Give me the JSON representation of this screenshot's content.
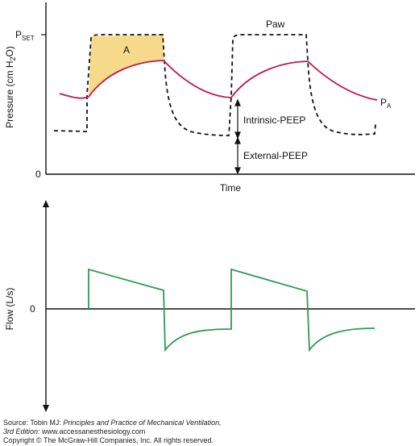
{
  "top_panel": {
    "y_label": "Pressure (cm H2O)",
    "y_label_parts": {
      "prefix": "Pressure (cm H",
      "sub": "2",
      "suffix": "O)"
    },
    "tick_pset": {
      "main": "P",
      "sub": "SET"
    },
    "tick_zero": "0",
    "x_label": "Time",
    "curve_paw_label": "Paw",
    "curve_pa_label": {
      "main": "P",
      "sub": "A"
    },
    "area_label": "A",
    "intrinsic_peep_label": "Intrinsic-PEEP",
    "external_peep_label": "External-PEEP"
  },
  "bottom_panel": {
    "y_label": "Flow (L/s)",
    "tick_zero": "0"
  },
  "credits": {
    "line1_prefix": "Source: Tobin MJ: ",
    "line1_title": "Principles and Practice of Mechanical Ventilation,",
    "line2_edition": "3rd Edition:",
    "line2_url": " www.accessanesthesiology.com",
    "line3": "Copyright © The McGraw-Hill Companies, Inc. All rights reserved."
  },
  "colors": {
    "paw": "#111111",
    "pa": "#c0184a",
    "area_fill": "#f6d98a",
    "flow": "#2e9a55",
    "axes": "#111111"
  }
}
